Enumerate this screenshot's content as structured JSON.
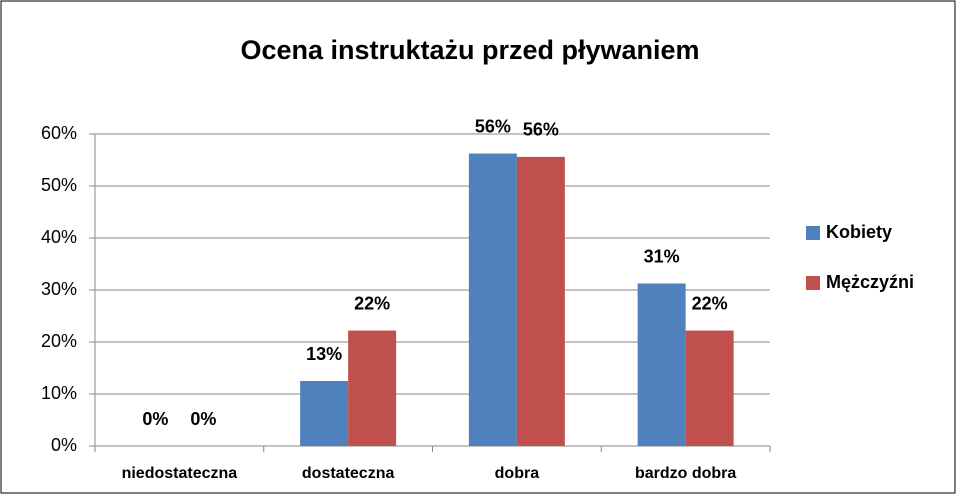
{
  "chart_data": {
    "type": "bar",
    "title": "Ocena instruktażu przed pływaniem",
    "categories": [
      "niedostateczna",
      "dostateczna",
      "dobra",
      "bardzo dobra"
    ],
    "series": [
      {
        "name": "Kobiety",
        "color": "#4f81bd",
        "values": [
          0,
          12.5,
          56.25,
          31.25
        ],
        "value_labels": [
          "0%",
          "13%",
          "56%",
          "31%"
        ]
      },
      {
        "name": "Mężczyźni",
        "color": "#c0504d",
        "values": [
          0,
          22.2,
          55.6,
          22.2
        ],
        "value_labels": [
          "0%",
          "22%",
          "56%",
          "22%"
        ]
      }
    ],
    "ylim": [
      0,
      60
    ],
    "yticks": [
      {
        "value": 0,
        "label": "0%"
      },
      {
        "value": 10,
        "label": "10%"
      },
      {
        "value": 20,
        "label": "20%"
      },
      {
        "value": 30,
        "label": "30%"
      },
      {
        "value": 40,
        "label": "40%"
      },
      {
        "value": 50,
        "label": "50%"
      },
      {
        "value": 60,
        "label": "60%"
      }
    ],
    "grid": true,
    "legend": "right"
  }
}
